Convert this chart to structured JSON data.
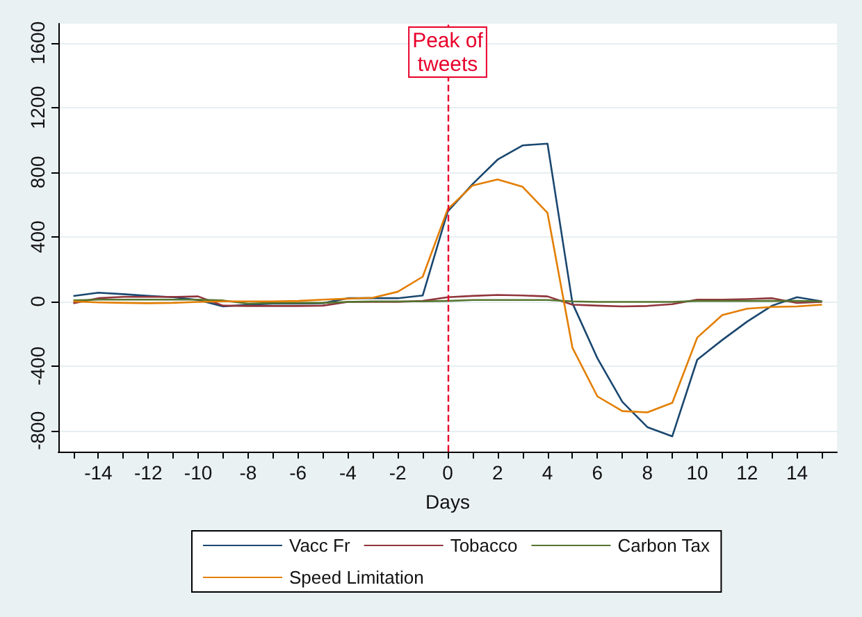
{
  "chart_data": {
    "type": "line",
    "xlabel": "Days",
    "x": [
      -15,
      -14,
      -13,
      -12,
      -11,
      -10,
      -9,
      -8,
      -7,
      -6,
      -5,
      -4,
      -3,
      -2,
      -1,
      0,
      1,
      2,
      3,
      4,
      5,
      6,
      7,
      8,
      9,
      10,
      11,
      12,
      13,
      14,
      15
    ],
    "series": [
      {
        "name": "Vacc Fr",
        "color": "#1a476f",
        "values": [
          34,
          54,
          45,
          34,
          26,
          9,
          -31,
          -20,
          -14,
          -14,
          -11,
          20,
          20,
          20,
          37,
          557,
          727,
          878,
          966,
          977,
          -11,
          -352,
          -622,
          -778,
          -835,
          -361,
          -239,
          -125,
          -26,
          26,
          0
        ]
      },
      {
        "name": "Tobacco",
        "color": "#90353b",
        "values": [
          -11,
          20,
          28,
          28,
          28,
          31,
          -26,
          -28,
          -28,
          -28,
          -26,
          -3,
          -3,
          -3,
          3,
          26,
          34,
          40,
          37,
          31,
          -20,
          -26,
          -31,
          -28,
          -17,
          11,
          11,
          14,
          20,
          -9,
          -3
        ]
      },
      {
        "name": "Carbon Tax",
        "color": "#55752f",
        "values": [
          6,
          11,
          11,
          11,
          11,
          11,
          6,
          -14,
          -9,
          -9,
          -9,
          -3,
          0,
          0,
          0,
          3,
          9,
          9,
          9,
          9,
          0,
          -3,
          -3,
          -3,
          -3,
          3,
          3,
          3,
          3,
          3,
          0
        ]
      },
      {
        "name": "Speed Limitation",
        "color": "#e37e00",
        "values": [
          0,
          -6,
          -9,
          -11,
          -9,
          -3,
          0,
          0,
          0,
          3,
          11,
          17,
          23,
          60,
          153,
          571,
          718,
          755,
          710,
          548,
          -287,
          -588,
          -679,
          -687,
          -628,
          -224,
          -85,
          -45,
          -34,
          -31,
          -20
        ]
      }
    ],
    "xlim": [
      -15.6,
      15.6
    ],
    "xticks": [
      {
        "value": -15,
        "label": null
      },
      -14,
      {
        "value": -13,
        "label": null
      },
      -12,
      {
        "value": -11,
        "label": null
      },
      -10,
      {
        "value": -9,
        "label": null
      },
      -8,
      {
        "value": -7,
        "label": null
      },
      -6,
      {
        "value": -5,
        "label": null
      },
      -4,
      {
        "value": -3,
        "label": null
      },
      -2,
      {
        "value": -1,
        "label": null
      },
      0,
      {
        "value": 1,
        "label": null
      },
      2,
      {
        "value": 3,
        "label": null
      },
      4,
      {
        "value": 5,
        "label": null
      },
      6,
      {
        "value": 7,
        "label": null
      },
      8,
      {
        "value": 9,
        "label": null
      },
      10,
      {
        "value": 11,
        "label": null
      },
      12,
      {
        "value": 13,
        "label": null
      },
      14,
      {
        "value": 15,
        "label": null
      }
    ],
    "ylim": [
      -930,
      1720
    ],
    "yticks": [
      -800,
      -400,
      0,
      400,
      800,
      1200,
      1600
    ],
    "grid": "y",
    "legend": "bottom",
    "marker": "none",
    "line_style": "solid",
    "ref_lines": [
      {
        "axis": "x",
        "value": 0,
        "label": "Peak of\ntweets",
        "color": "#e8002a",
        "line_style": "dashed"
      }
    ]
  }
}
